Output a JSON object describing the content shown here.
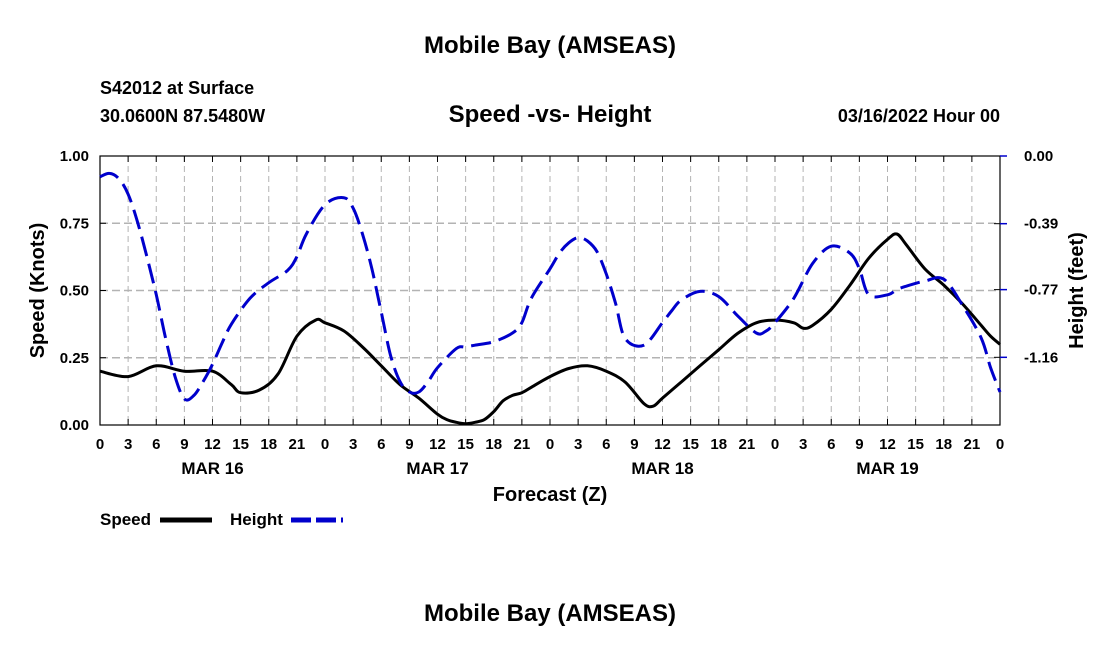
{
  "header": {
    "title": "Mobile Bay (AMSEAS)",
    "station": "S42012 at Surface",
    "coordinates": "30.0600N  87.5480W",
    "chart_title": "Speed -vs- Height",
    "datetime": "03/16/2022 Hour 00"
  },
  "footer": {
    "title": "Mobile Bay (AMSEAS)"
  },
  "chart_data": {
    "type": "line",
    "title": "Speed -vs- Height",
    "xlabel": "Forecast (Z)",
    "ylabel": "Speed (Knots)",
    "y2label": "Height (feet)",
    "xlim": [
      0,
      96
    ],
    "ylim": [
      0,
      1
    ],
    "y2lim": [
      0,
      -1.55
    ],
    "x_ticks": [
      0,
      3,
      6,
      9,
      12,
      15,
      18,
      21,
      24,
      27,
      30,
      33,
      36,
      39,
      42,
      45,
      48,
      51,
      54,
      57,
      60,
      63,
      66,
      69,
      72,
      75,
      78,
      81,
      84,
      87,
      90,
      93,
      96
    ],
    "x_tick_labels": [
      "0",
      "3",
      "6",
      "9",
      "12",
      "15",
      "18",
      "21",
      "0",
      "3",
      "6",
      "9",
      "12",
      "15",
      "18",
      "21",
      "0",
      "3",
      "6",
      "9",
      "12",
      "15",
      "18",
      "21",
      "0",
      "3",
      "6",
      "9",
      "12",
      "15",
      "18",
      "21",
      "0"
    ],
    "day_labels": [
      {
        "x": 12,
        "label": "MAR 16"
      },
      {
        "x": 36,
        "label": "MAR 17"
      },
      {
        "x": 60,
        "label": "MAR 18"
      },
      {
        "x": 84,
        "label": "MAR 19"
      }
    ],
    "y_ticks": [
      0,
      0.25,
      0.5,
      0.75,
      1.0
    ],
    "y_tick_labels": [
      "0.00",
      "0.25",
      "0.50",
      "0.75",
      "1.00"
    ],
    "y2_ticks": [
      0,
      -0.39,
      -0.77,
      -1.16
    ],
    "y2_tick_labels": [
      "0.00",
      "-0.39",
      "-0.77",
      "-1.16"
    ],
    "grid": true,
    "legend": [
      {
        "label": "Speed",
        "color": "#000000",
        "style": "solid"
      },
      {
        "label": "Height",
        "color": "#0000cc",
        "style": "dashed"
      }
    ],
    "series": [
      {
        "name": "Speed",
        "axis": "left",
        "color": "#000000",
        "x": [
          0,
          3,
          6,
          9,
          12,
          14,
          15,
          17,
          19,
          21,
          23,
          24,
          26,
          28,
          30,
          32,
          34,
          36,
          37,
          38,
          39,
          40,
          41,
          42,
          43,
          44,
          45,
          46,
          48,
          50,
          52,
          54,
          56,
          58,
          59,
          60,
          62,
          64,
          66,
          68,
          70,
          72,
          74,
          75,
          76,
          78,
          80,
          82,
          84,
          85,
          86,
          88,
          90,
          92,
          94,
          95,
          96
        ],
        "values": [
          0.2,
          0.18,
          0.22,
          0.2,
          0.2,
          0.15,
          0.12,
          0.13,
          0.19,
          0.33,
          0.39,
          0.38,
          0.35,
          0.29,
          0.22,
          0.15,
          0.1,
          0.04,
          0.02,
          0.01,
          0.005,
          0.01,
          0.02,
          0.05,
          0.09,
          0.11,
          0.12,
          0.14,
          0.18,
          0.21,
          0.22,
          0.2,
          0.16,
          0.08,
          0.07,
          0.1,
          0.16,
          0.22,
          0.28,
          0.34,
          0.38,
          0.39,
          0.38,
          0.36,
          0.37,
          0.43,
          0.52,
          0.62,
          0.69,
          0.71,
          0.67,
          0.58,
          0.52,
          0.45,
          0.37,
          0.33,
          0.3
        ]
      },
      {
        "name": "Height",
        "axis": "right",
        "color": "#0000cc",
        "x": [
          0,
          1,
          2,
          3,
          4,
          5,
          6,
          7,
          8,
          9,
          10,
          11,
          12,
          13,
          14,
          16,
          18,
          20,
          21,
          22,
          24,
          26,
          27,
          28,
          29,
          30,
          31,
          32,
          33,
          34,
          35,
          36,
          38,
          39,
          40,
          42,
          44,
          45,
          46,
          48,
          49,
          50,
          51,
          52,
          53,
          54,
          55,
          56,
          58,
          60,
          61,
          62,
          64,
          66,
          68,
          70,
          71,
          72,
          74,
          76,
          78,
          80,
          81,
          82,
          84,
          85,
          86,
          88,
          90,
          92,
          94,
          95,
          96
        ],
        "values": [
          -0.12,
          -0.1,
          -0.13,
          -0.22,
          -0.38,
          -0.58,
          -0.8,
          -1.05,
          -1.27,
          -1.4,
          -1.38,
          -1.3,
          -1.2,
          -1.08,
          -0.97,
          -0.82,
          -0.73,
          -0.66,
          -0.58,
          -0.45,
          -0.28,
          -0.24,
          -0.3,
          -0.45,
          -0.65,
          -0.9,
          -1.15,
          -1.3,
          -1.36,
          -1.36,
          -1.3,
          -1.22,
          -1.11,
          -1.1,
          -1.09,
          -1.07,
          -1.02,
          -0.96,
          -0.82,
          -0.65,
          -0.56,
          -0.5,
          -0.47,
          -0.49,
          -0.55,
          -0.68,
          -0.85,
          -1.05,
          -1.09,
          -0.96,
          -0.89,
          -0.83,
          -0.78,
          -0.81,
          -0.92,
          -1.02,
          -1.01,
          -0.96,
          -0.82,
          -0.62,
          -0.52,
          -0.56,
          -0.65,
          -0.8,
          -0.8,
          -0.77,
          -0.75,
          -0.72,
          -0.71,
          -0.86,
          -1.05,
          -1.22,
          -1.36
        ]
      }
    ]
  }
}
